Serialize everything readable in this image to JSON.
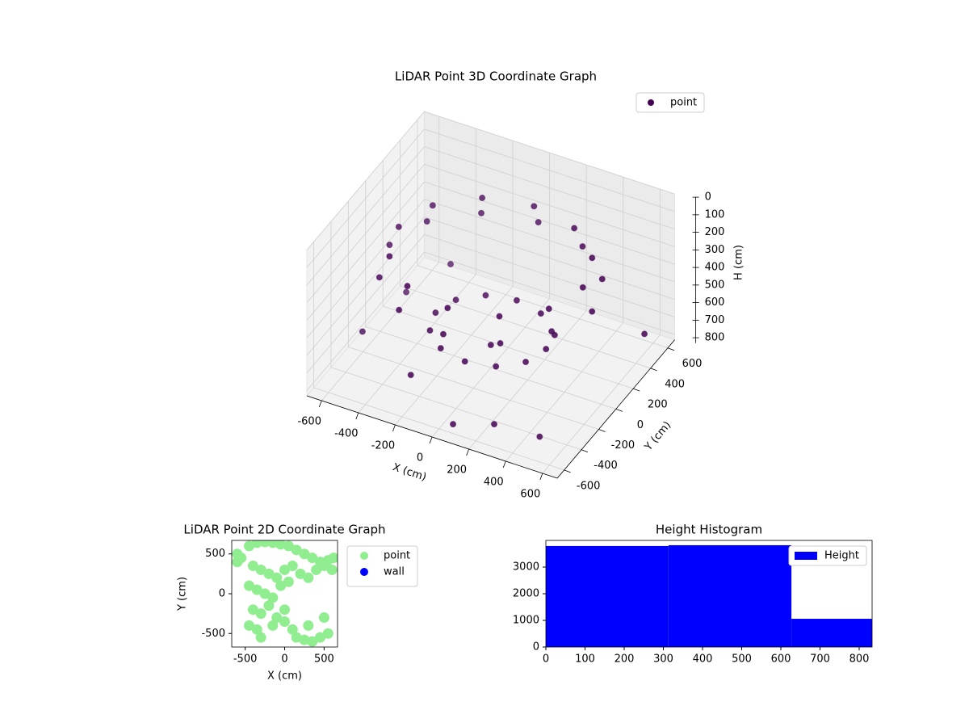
{
  "chart_data": [
    {
      "type": "scatter3d",
      "title": "LiDAR Point 3D Coordinate Graph",
      "xlabel": "X (cm)",
      "ylabel": "Y (cm)",
      "zlabel": "H (cm)",
      "xlim": [
        -680,
        680
      ],
      "ylim": [
        -680,
        680
      ],
      "zlim": [
        0,
        830
      ],
      "zinverted": true,
      "xticks": [
        -600,
        -400,
        -200,
        0,
        200,
        400,
        600
      ],
      "yticks": [
        -600,
        -400,
        -200,
        0,
        200,
        400,
        600
      ],
      "zticks": [
        0,
        100,
        200,
        300,
        400,
        500,
        600,
        700,
        800
      ],
      "grid": true,
      "legend": "upper right",
      "series": [
        {
          "name": "point",
          "color": "#440154",
          "x": [
            550,
            476,
            275,
            0,
            -275,
            -476,
            -550,
            -476,
            -275,
            0,
            275,
            476,
            500,
            433,
            250,
            0,
            -250,
            -433,
            -500,
            -433,
            -250,
            0,
            250,
            433,
            300,
            260,
            150,
            0,
            -150,
            -260,
            -300,
            -260,
            -150,
            0,
            150,
            260,
            0,
            -650,
            -600,
            300,
            500,
            -200,
            600,
            100,
            -500
          ],
          "y": [
            0,
            275,
            476,
            550,
            476,
            275,
            0,
            -275,
            -476,
            -550,
            -476,
            -275,
            0,
            250,
            433,
            500,
            433,
            250,
            0,
            -250,
            -433,
            -500,
            -433,
            -250,
            0,
            150,
            260,
            300,
            260,
            150,
            0,
            -150,
            -260,
            -300,
            -260,
            -150,
            0,
            -100,
            300,
            -600,
            -500,
            -500,
            500,
            -650,
            600
          ],
          "z": [
            320,
            320,
            320,
            320,
            320,
            320,
            320,
            320,
            320,
            320,
            320,
            320,
            200,
            200,
            200,
            200,
            200,
            200,
            200,
            200,
            200,
            200,
            200,
            200,
            620,
            620,
            620,
            620,
            620,
            620,
            620,
            620,
            620,
            620,
            620,
            620,
            700,
            790,
            780,
            700,
            760,
            650,
            720,
            740,
            760
          ]
        }
      ]
    },
    {
      "type": "scatter",
      "title": "LiDAR Point 2D Coordinate Graph",
      "xlabel": "X (cm)",
      "ylabel": "Y (cm)",
      "xlim": [
        -670,
        670
      ],
      "ylim": [
        -670,
        670
      ],
      "xticks": [
        -500,
        0,
        500
      ],
      "yticks": [
        -500,
        0,
        500
      ],
      "legend": "outside right",
      "series": [
        {
          "name": "point",
          "color": "#90ee90",
          "x": [
            -600,
            -550,
            -450,
            -350,
            -250,
            -150,
            -50,
            50,
            150,
            250,
            350,
            450,
            550,
            620,
            -400,
            -300,
            -200,
            -100,
            0,
            100,
            200,
            300,
            400,
            500,
            -450,
            -350,
            -250,
            -150,
            -50,
            50,
            -400,
            -300,
            -200,
            -100,
            0,
            -450,
            -350,
            -300,
            150,
            250,
            350,
            450,
            550,
            -150,
            0,
            100,
            300,
            500,
            -600,
            600
          ],
          "y": [
            500,
            450,
            600,
            640,
            650,
            640,
            620,
            600,
            550,
            500,
            450,
            400,
            420,
            450,
            350,
            300,
            250,
            200,
            300,
            350,
            250,
            200,
            300,
            350,
            100,
            50,
            0,
            -50,
            100,
            150,
            -200,
            -250,
            -150,
            -300,
            -200,
            -400,
            -450,
            -550,
            -550,
            -580,
            -600,
            -550,
            -500,
            -400,
            -350,
            -450,
            -400,
            -300,
            400,
            300
          ]
        },
        {
          "name": "wall",
          "color": "#0000ff",
          "x": [],
          "y": []
        }
      ]
    },
    {
      "type": "histogram",
      "title": "Height Histogram",
      "bins": [
        0,
        313,
        627,
        833
      ],
      "xlim": [
        0,
        833
      ],
      "ylim": [
        0,
        4000
      ],
      "xticks": [
        0,
        100,
        200,
        300,
        400,
        500,
        600,
        700,
        800
      ],
      "yticks": [
        0,
        1000,
        2000,
        3000
      ],
      "legend": "upper right",
      "series": [
        {
          "name": "Height",
          "color": "#0000ff",
          "values": [
            3790,
            3820,
            1060
          ]
        }
      ]
    }
  ]
}
